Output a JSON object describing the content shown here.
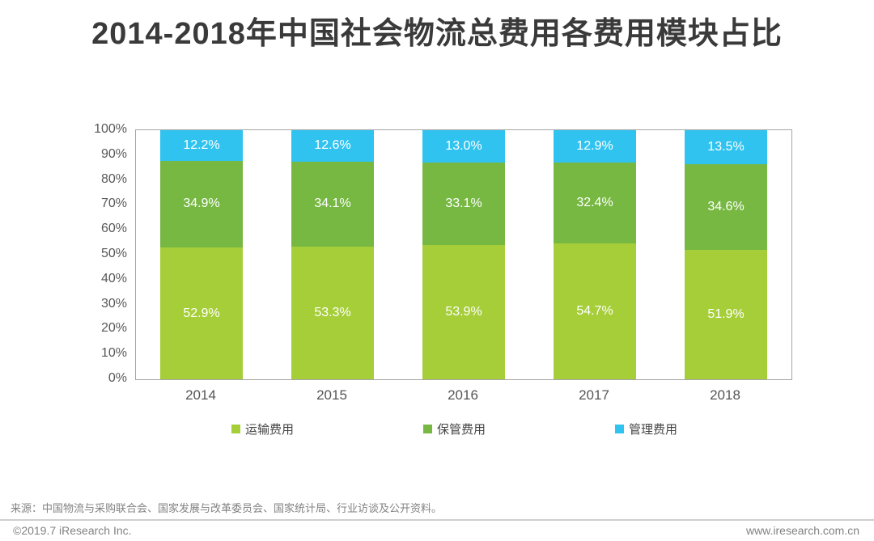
{
  "title": "2014-2018年中国社会物流总费用各费用模块占比",
  "chart_data": {
    "type": "bar",
    "stacked": true,
    "percent_stacked": true,
    "title": "2014-2018年中国社会物流总费用各费用模块占比",
    "categories": [
      "2014",
      "2015",
      "2016",
      "2017",
      "2018"
    ],
    "series": [
      {
        "name": "运输费用",
        "color": "#a6ce39",
        "values": [
          52.9,
          53.3,
          53.9,
          54.7,
          51.9
        ]
      },
      {
        "name": "保管费用",
        "color": "#77b843",
        "values": [
          34.9,
          34.1,
          33.1,
          32.4,
          34.6
        ]
      },
      {
        "name": "管理费用",
        "color": "#30c3f0",
        "values": [
          12.2,
          12.6,
          13.0,
          12.9,
          13.5
        ]
      }
    ],
    "value_suffix": "%",
    "ylim": [
      0,
      100
    ],
    "y_ticks": [
      "0%",
      "10%",
      "20%",
      "30%",
      "40%",
      "50%",
      "60%",
      "70%",
      "80%",
      "90%",
      "100%"
    ],
    "xlabel": "",
    "ylabel": "",
    "grid": false,
    "legend_position": "bottom",
    "label_color": "#ffffff"
  },
  "footer": {
    "source": "来源：中国物流与采购联合会、国家发展与改革委员会、国家统计局、行业访谈及公开资料。",
    "copyright": "©2019.7 iResearch Inc.",
    "website": "www.iresearch.com.cn"
  }
}
